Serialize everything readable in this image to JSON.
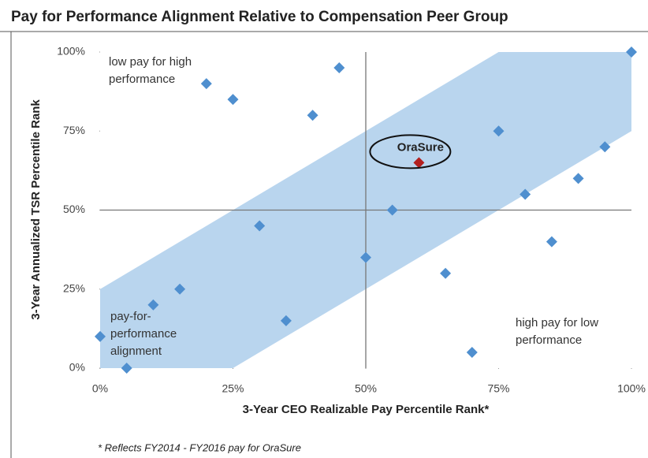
{
  "chart_data": {
    "type": "scatter",
    "title": "Pay for Performance Alignment Relative to Compensation Peer Group",
    "x_label": "3-Year CEO Realizable Pay Percentile Rank*",
    "y_label": "3-Year Annualized TSR Percentile Rank",
    "footnote": "* Reflects FY2014 - FY2016 pay for OraSure",
    "xlim": [
      0,
      100
    ],
    "ylim": [
      0,
      100
    ],
    "xticks": [
      {
        "value": 0,
        "label": "0%"
      },
      {
        "value": 25,
        "label": "25%"
      },
      {
        "value": 50,
        "label": "50%"
      },
      {
        "value": 75,
        "label": "75%"
      },
      {
        "value": 100,
        "label": "100%"
      }
    ],
    "yticks": [
      {
        "value": 0,
        "label": "0%"
      },
      {
        "value": 25,
        "label": "25%"
      },
      {
        "value": 50,
        "label": "50%"
      },
      {
        "value": 75,
        "label": "75%"
      },
      {
        "value": 100,
        "label": "100%"
      }
    ],
    "reference_lines": {
      "x": 50,
      "y": 50
    },
    "band": {
      "x": [
        0,
        0,
        75,
        100,
        100,
        25
      ],
      "y": [
        0,
        25,
        100,
        100,
        75,
        0
      ],
      "color": "#b9d5ee"
    },
    "annotations": [
      {
        "lines": [
          "low pay for high",
          "performance"
        ]
      },
      {
        "lines": [
          "pay-for-",
          "performance",
          "alignment"
        ]
      },
      {
        "lines": [
          "high pay for low",
          "performance"
        ]
      }
    ],
    "series": [
      {
        "color": "#4f8fcf",
        "x": [
          0,
          5,
          10,
          15,
          20,
          25,
          30,
          35,
          40,
          45,
          50,
          55,
          65,
          70,
          75,
          80,
          85,
          90,
          95,
          100
        ],
        "values": [
          10,
          0,
          20,
          25,
          90,
          85,
          45,
          15,
          80,
          95,
          35,
          50,
          30,
          5,
          75,
          55,
          40,
          60,
          70,
          100
        ]
      },
      {
        "name": "OraSure",
        "color": "#b3201f",
        "x": [
          60
        ],
        "values": [
          65
        ]
      }
    ]
  }
}
